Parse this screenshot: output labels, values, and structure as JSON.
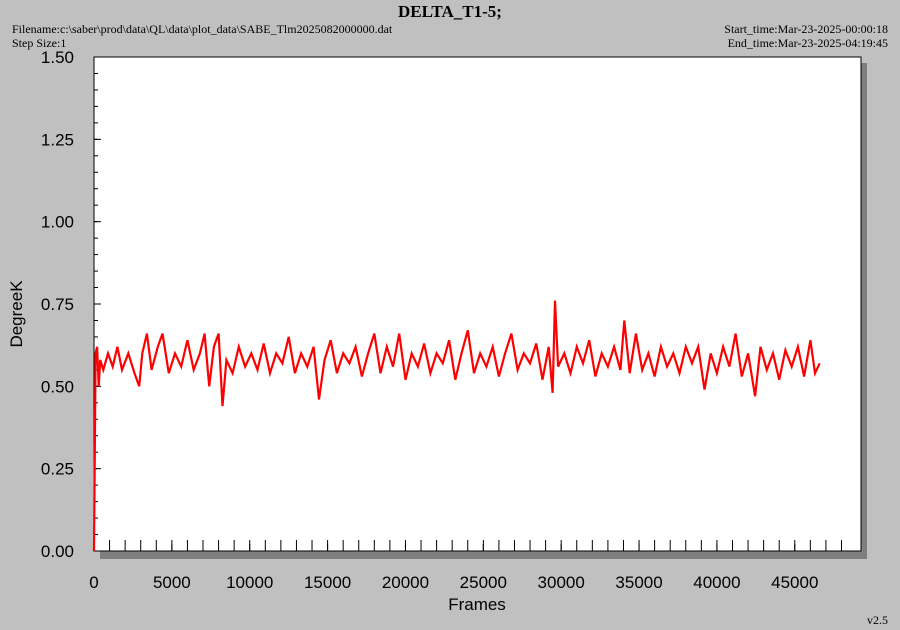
{
  "header": {
    "title": "DELTA_T1-5;",
    "filename": "Filename:c:\\saber\\prod\\data\\QL\\data\\plot_data\\SABE_Tlm2025082000000.dat",
    "step_size": "Step Size:1",
    "start_time": "Start_time:Mar-23-2025-00:00:18",
    "end_time": "End_time:Mar-23-2025-04:19:45"
  },
  "footer": {
    "version": "v2.5"
  },
  "colors": {
    "series": "#ff0000",
    "background": "#c0c0c0",
    "plot_bg": "#ffffff",
    "shadow": "#7f7f7f"
  },
  "chart_data": {
    "type": "line",
    "title": "DELTA_T1-5;",
    "xlabel": "Frames",
    "ylabel": "DegreeK",
    "xlim": [
      0,
      49000
    ],
    "ylim": [
      0,
      1.5
    ],
    "x_ticks": [
      "0",
      "5000",
      "10000",
      "15000",
      "20000",
      "25000",
      "30000",
      "35000",
      "40000",
      "45000"
    ],
    "y_ticks": [
      "0.00",
      "0.25",
      "0.50",
      "0.75",
      "1.00",
      "1.25",
      "1.50"
    ],
    "grid": false,
    "series": [
      {
        "values_note_key": "points",
        "points": [
          [
            0,
            0.0
          ],
          [
            100,
            0.6
          ],
          [
            200,
            0.62
          ],
          [
            300,
            0.5
          ],
          [
            400,
            0.58
          ],
          [
            600,
            0.55
          ],
          [
            900,
            0.6
          ],
          [
            1200,
            0.56
          ],
          [
            1500,
            0.62
          ],
          [
            1800,
            0.55
          ],
          [
            2200,
            0.6
          ],
          [
            2600,
            0.54
          ],
          [
            2900,
            0.5
          ],
          [
            3100,
            0.6
          ],
          [
            3400,
            0.66
          ],
          [
            3700,
            0.55
          ],
          [
            4100,
            0.62
          ],
          [
            4400,
            0.66
          ],
          [
            4800,
            0.54
          ],
          [
            5200,
            0.6
          ],
          [
            5600,
            0.56
          ],
          [
            6000,
            0.64
          ],
          [
            6400,
            0.55
          ],
          [
            6800,
            0.6
          ],
          [
            7100,
            0.66
          ],
          [
            7400,
            0.5
          ],
          [
            7700,
            0.62
          ],
          [
            8000,
            0.66
          ],
          [
            8250,
            0.44
          ],
          [
            8500,
            0.58
          ],
          [
            8900,
            0.54
          ],
          [
            9300,
            0.62
          ],
          [
            9700,
            0.56
          ],
          [
            10100,
            0.6
          ],
          [
            10500,
            0.55
          ],
          [
            10900,
            0.63
          ],
          [
            11300,
            0.54
          ],
          [
            11700,
            0.6
          ],
          [
            12100,
            0.57
          ],
          [
            12500,
            0.65
          ],
          [
            12900,
            0.54
          ],
          [
            13300,
            0.6
          ],
          [
            13700,
            0.56
          ],
          [
            14100,
            0.62
          ],
          [
            14450,
            0.46
          ],
          [
            14800,
            0.58
          ],
          [
            15200,
            0.64
          ],
          [
            15600,
            0.54
          ],
          [
            16000,
            0.6
          ],
          [
            16400,
            0.57
          ],
          [
            16800,
            0.62
          ],
          [
            17200,
            0.53
          ],
          [
            17600,
            0.6
          ],
          [
            18000,
            0.66
          ],
          [
            18400,
            0.54
          ],
          [
            18800,
            0.62
          ],
          [
            19200,
            0.56
          ],
          [
            19600,
            0.66
          ],
          [
            20000,
            0.52
          ],
          [
            20400,
            0.6
          ],
          [
            20800,
            0.56
          ],
          [
            21200,
            0.63
          ],
          [
            21600,
            0.54
          ],
          [
            22000,
            0.6
          ],
          [
            22400,
            0.57
          ],
          [
            22800,
            0.64
          ],
          [
            23200,
            0.52
          ],
          [
            23600,
            0.6
          ],
          [
            24000,
            0.67
          ],
          [
            24400,
            0.54
          ],
          [
            24800,
            0.6
          ],
          [
            25200,
            0.56
          ],
          [
            25600,
            0.62
          ],
          [
            26000,
            0.53
          ],
          [
            26400,
            0.6
          ],
          [
            26800,
            0.66
          ],
          [
            27200,
            0.55
          ],
          [
            27600,
            0.6
          ],
          [
            28000,
            0.57
          ],
          [
            28400,
            0.63
          ],
          [
            28800,
            0.52
          ],
          [
            29200,
            0.62
          ],
          [
            29450,
            0.48
          ],
          [
            29600,
            0.76
          ],
          [
            29800,
            0.56
          ],
          [
            30200,
            0.6
          ],
          [
            30600,
            0.54
          ],
          [
            31000,
            0.62
          ],
          [
            31400,
            0.57
          ],
          [
            31800,
            0.64
          ],
          [
            32200,
            0.53
          ],
          [
            32600,
            0.6
          ],
          [
            33000,
            0.56
          ],
          [
            33400,
            0.62
          ],
          [
            33800,
            0.55
          ],
          [
            34050,
            0.7
          ],
          [
            34400,
            0.54
          ],
          [
            34800,
            0.66
          ],
          [
            35200,
            0.55
          ],
          [
            35600,
            0.6
          ],
          [
            36000,
            0.53
          ],
          [
            36400,
            0.62
          ],
          [
            36800,
            0.56
          ],
          [
            37200,
            0.6
          ],
          [
            37600,
            0.54
          ],
          [
            38000,
            0.62
          ],
          [
            38400,
            0.57
          ],
          [
            38800,
            0.62
          ],
          [
            39200,
            0.49
          ],
          [
            39600,
            0.6
          ],
          [
            40000,
            0.54
          ],
          [
            40400,
            0.62
          ],
          [
            40800,
            0.56
          ],
          [
            41200,
            0.66
          ],
          [
            41600,
            0.53
          ],
          [
            42000,
            0.6
          ],
          [
            42450,
            0.47
          ],
          [
            42800,
            0.62
          ],
          [
            43200,
            0.55
          ],
          [
            43600,
            0.6
          ],
          [
            44000,
            0.52
          ],
          [
            44400,
            0.61
          ],
          [
            44800,
            0.56
          ],
          [
            45200,
            0.62
          ],
          [
            45600,
            0.53
          ],
          [
            46000,
            0.64
          ],
          [
            46300,
            0.54
          ],
          [
            46600,
            0.57
          ]
        ]
      }
    ]
  }
}
